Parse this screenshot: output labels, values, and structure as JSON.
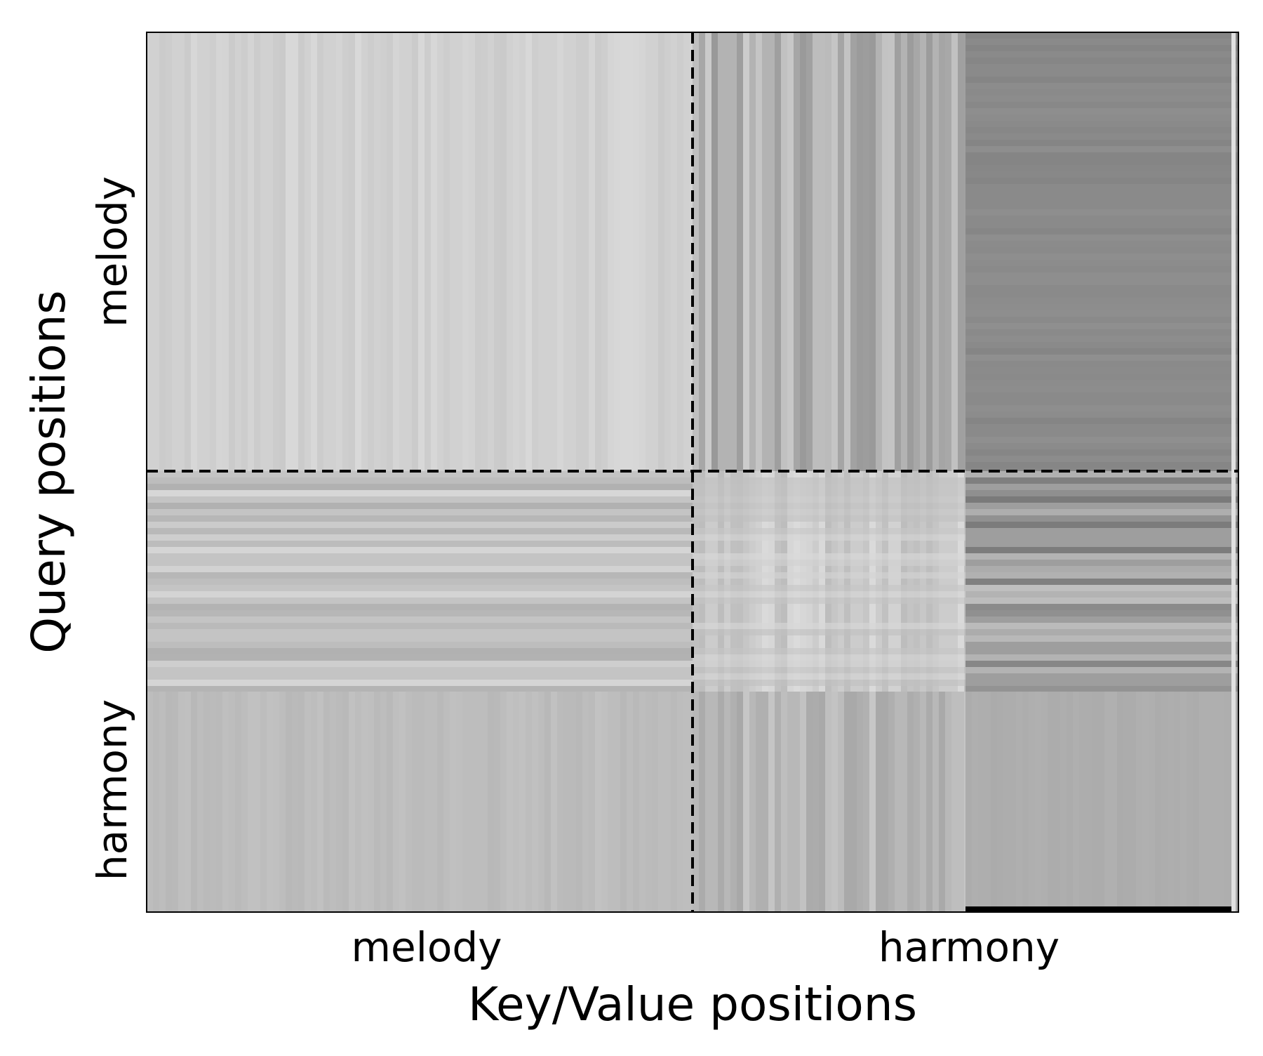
{
  "chart_data": {
    "type": "heatmap",
    "title": "",
    "xlabel": "Key/Value positions",
    "ylabel": "Query positions",
    "x_ticks": [
      "melody",
      "harmony"
    ],
    "y_ticks": [
      "melody",
      "harmony"
    ],
    "segments": {
      "x": [
        {
          "name": "melody",
          "length": 70
        },
        {
          "name": "harmony",
          "length": 70
        }
      ],
      "y": [
        {
          "name": "melody",
          "length": 50
        },
        {
          "name": "harmony",
          "length": 50
        }
      ]
    },
    "colormap": "grayscale",
    "grid": false,
    "blocks": [
      {
        "query": "melody",
        "key": "melody",
        "level": 0.82
      },
      {
        "query": "melody",
        "key": "harmony",
        "level": 0.7
      },
      {
        "query": "melody",
        "key": "harmony",
        "level": 0.54
      },
      {
        "query": "harmony",
        "key": "melody",
        "level": 0.77
      },
      {
        "query": "harmony",
        "key": "melody",
        "level": 0.74
      },
      {
        "query": "harmony",
        "key": "harmony",
        "level": 0.8
      },
      {
        "query": "harmony",
        "key": "harmony",
        "level": 0.62
      },
      {
        "query": "harmony",
        "key": "harmony",
        "level": 0.72
      },
      {
        "query": "harmony",
        "key": "harmony",
        "level": 0.68
      }
    ],
    "colors": {
      "background": "#ffffff",
      "frame": "#000000",
      "divider": "#000000"
    }
  }
}
